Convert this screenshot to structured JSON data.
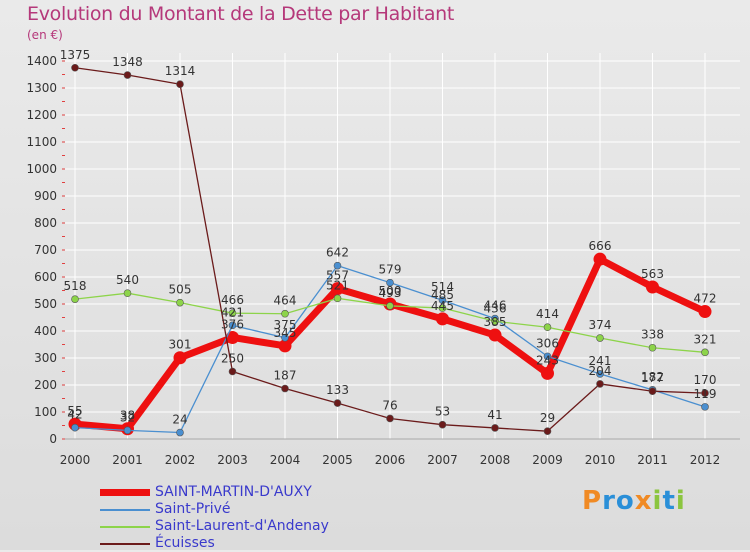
{
  "title": "Evolution du Montant de la Dette par Habitant",
  "subtitle": "(en €)",
  "logo": {
    "text": "Proxiti",
    "colors": [
      "#f08a24",
      "#2a8fd8",
      "#2a8fd8",
      "#f08a24",
      "#8bc53f",
      "#2a8fd8",
      "#8bc53f"
    ]
  },
  "chart_data": {
    "type": "line",
    "categories": [
      "2000",
      "2001",
      "2002",
      "2003",
      "2004",
      "2005",
      "2006",
      "2007",
      "2008",
      "2009",
      "2010",
      "2011",
      "2012"
    ],
    "ylim": [
      0,
      1400
    ],
    "yticks": [
      0,
      100,
      200,
      300,
      400,
      500,
      600,
      700,
      800,
      900,
      1000,
      1100,
      1200,
      1300,
      1400
    ],
    "grid": true,
    "legend_position": "bottom-left",
    "series": [
      {
        "name": "SAINT-MARTIN-D'AUXY",
        "color": "#ee1010",
        "width": 7,
        "values": [
          55,
          38,
          301,
          376,
          345,
          557,
          500,
          445,
          385,
          243,
          666,
          563,
          472
        ],
        "labels": [
          "55",
          "38",
          "301",
          "376",
          "345",
          "557",
          "500",
          "445",
          "385",
          "243",
          "666",
          "563",
          "472"
        ]
      },
      {
        "name": "Saint-Privé",
        "color": "#4a8fd0",
        "width": 1.3,
        "values": [
          42,
          32,
          24,
          421,
          375,
          642,
          579,
          514,
          446,
          306,
          241,
          182,
          119
        ],
        "labels": [
          "42",
          "32",
          "24",
          "421",
          "375",
          "642",
          "579",
          "514",
          "446",
          "306",
          "241",
          "182",
          "119"
        ]
      },
      {
        "name": "Saint-Laurent-d'Andenay",
        "color": "#8dd44a",
        "width": 1.3,
        "values": [
          518,
          540,
          505,
          466,
          464,
          521,
          493,
          485,
          436,
          414,
          374,
          338,
          321
        ],
        "labels": [
          "518",
          "540",
          "505",
          "466",
          "464",
          "521",
          "493",
          "485",
          "436",
          "414",
          "374",
          "338",
          "321"
        ]
      },
      {
        "name": "Écuisses",
        "color": "#6b1b1b",
        "width": 1.3,
        "values": [
          1375,
          1348,
          1314,
          250,
          187,
          133,
          76,
          53,
          41,
          29,
          204,
          177,
          170
        ],
        "labels": [
          "1375",
          "1348",
          "1314",
          "250",
          "187",
          "133",
          "76",
          "53",
          "41",
          "29",
          "204",
          "177",
          "170"
        ]
      }
    ]
  }
}
